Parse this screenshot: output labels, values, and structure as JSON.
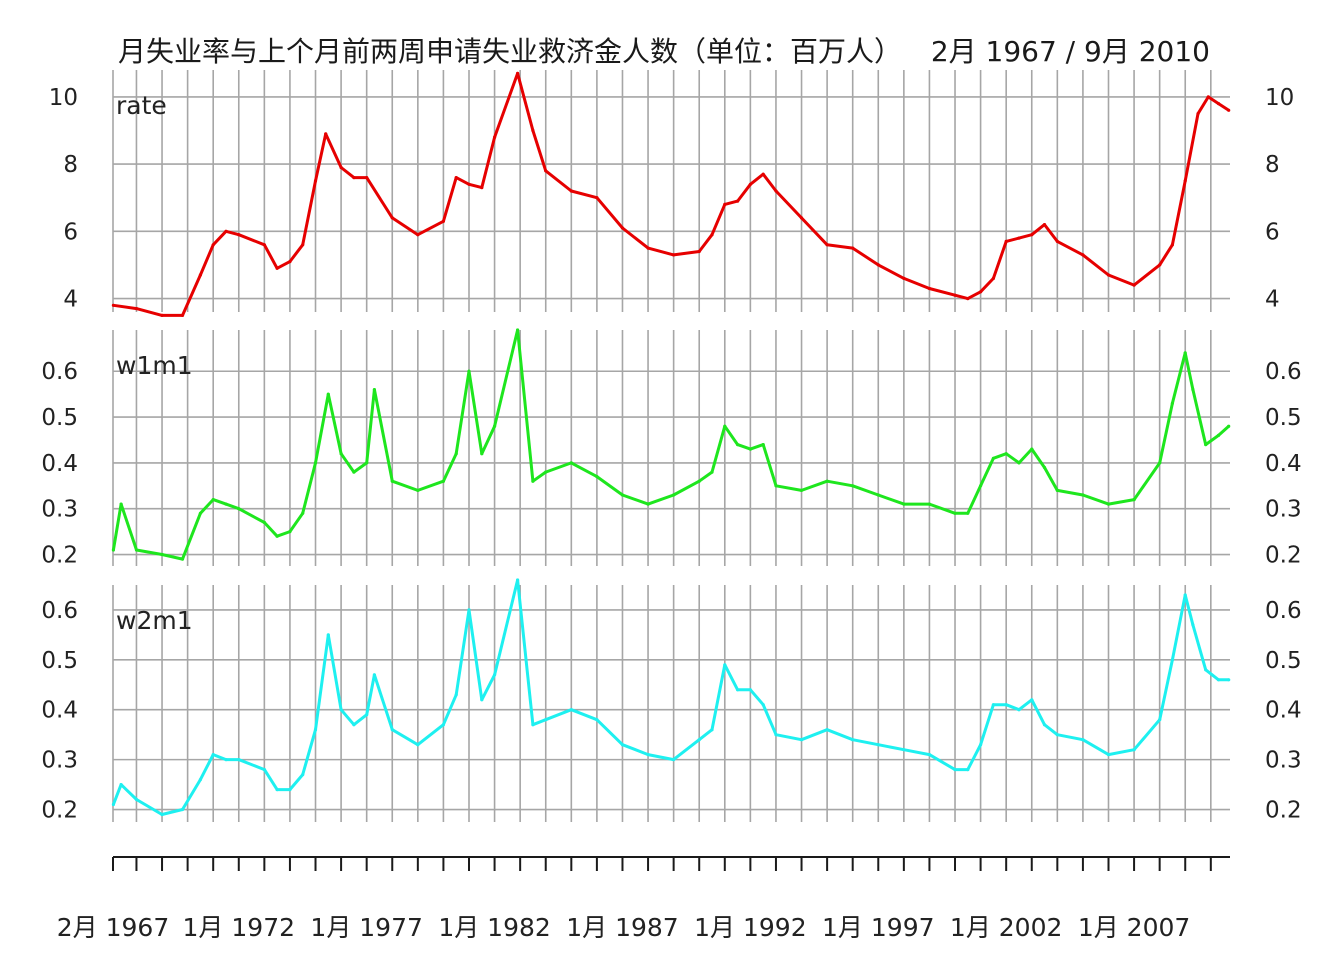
{
  "chart_data": {
    "type": "line",
    "title_left": "月失业率与上个月前两周申请失业救济金人数（单位：百万人）",
    "title_right": "2月 1967 / 9月 2010",
    "x_range": [
      "1967-02",
      "2010-09"
    ],
    "x_tick_labels": [
      "2月 1967",
      "1月 1972",
      "1月 1977",
      "1月 1982",
      "1月 1987",
      "1月 1992",
      "1月 1997",
      "1月 2002",
      "1月 2007"
    ],
    "x_tick_dates": [
      1967.083,
      1972.0,
      1977.0,
      1982.0,
      1987.0,
      1992.0,
      1997.0,
      2002.0,
      2007.0
    ],
    "x_minor_ticks": "yearly",
    "grid": true,
    "panels": [
      {
        "name": "rate",
        "color": "#e60000",
        "ylim": [
          3.6,
          10.8
        ],
        "yticks": [
          4,
          6,
          8,
          10
        ],
        "ytick_labels": [
          "4",
          "6",
          "8",
          "10"
        ],
        "x": [
          1967.1,
          1968.0,
          1969.0,
          1969.8,
          1970.5,
          1971.0,
          1971.5,
          1972.0,
          1973.0,
          1973.5,
          1974.0,
          1974.5,
          1975.0,
          1975.4,
          1976.0,
          1976.5,
          1977.0,
          1978.0,
          1979.0,
          1980.0,
          1980.5,
          1981.0,
          1981.5,
          1982.0,
          1982.9,
          1983.5,
          1984.0,
          1985.0,
          1986.0,
          1987.0,
          1988.0,
          1989.0,
          1990.0,
          1990.5,
          1991.0,
          1991.5,
          1992.0,
          1992.5,
          1993.0,
          1994.0,
          1995.0,
          1996.0,
          1997.0,
          1998.0,
          1999.0,
          2000.0,
          2000.5,
          2001.0,
          2001.5,
          2002.0,
          2002.5,
          2003.0,
          2003.5,
          2004.0,
          2005.0,
          2006.0,
          2007.0,
          2008.0,
          2008.5,
          2009.0,
          2009.5,
          2009.9,
          2010.3,
          2010.7
        ],
        "y": [
          3.8,
          3.7,
          3.5,
          3.5,
          4.7,
          5.6,
          6.0,
          5.9,
          5.6,
          4.9,
          5.1,
          5.6,
          7.5,
          8.9,
          7.9,
          7.6,
          7.6,
          6.4,
          5.9,
          6.3,
          7.6,
          7.4,
          7.3,
          8.8,
          10.7,
          9.0,
          7.8,
          7.2,
          7.0,
          6.1,
          5.5,
          5.3,
          5.4,
          5.9,
          6.8,
          6.9,
          7.4,
          7.7,
          7.2,
          6.4,
          5.6,
          5.5,
          5.0,
          4.6,
          4.3,
          4.1,
          4.0,
          4.2,
          4.6,
          5.7,
          5.8,
          5.9,
          6.2,
          5.7,
          5.3,
          4.7,
          4.4,
          5.0,
          5.6,
          7.5,
          9.5,
          10.0,
          9.8,
          9.6
        ]
      },
      {
        "name": "w1m1",
        "color": "#1ee61e",
        "ylim": [
          0.175,
          0.69
        ],
        "yticks": [
          0.2,
          0.3,
          0.4,
          0.5,
          0.6
        ],
        "ytick_labels": [
          "0.2",
          "0.3",
          "0.4",
          "0.5",
          "0.6"
        ],
        "x": [
          1967.1,
          1967.4,
          1968.0,
          1969.0,
          1969.8,
          1970.5,
          1971.0,
          1971.5,
          1972.0,
          1973.0,
          1973.5,
          1974.0,
          1974.5,
          1975.0,
          1975.5,
          1976.0,
          1976.5,
          1977.0,
          1977.3,
          1978.0,
          1979.0,
          1980.0,
          1980.5,
          1981.0,
          1981.5,
          1982.0,
          1982.9,
          1983.5,
          1984.0,
          1985.0,
          1986.0,
          1987.0,
          1988.0,
          1989.0,
          1990.0,
          1990.5,
          1991.0,
          1991.5,
          1992.0,
          1992.5,
          1993.0,
          1994.0,
          1995.0,
          1996.0,
          1997.0,
          1998.0,
          1999.0,
          2000.0,
          2000.5,
          2001.0,
          2001.5,
          2002.0,
          2002.5,
          2003.0,
          2003.5,
          2004.0,
          2005.0,
          2006.0,
          2007.0,
          2008.0,
          2008.5,
          2009.0,
          2009.3,
          2009.8,
          2010.3,
          2010.7
        ],
        "y": [
          0.21,
          0.31,
          0.21,
          0.2,
          0.19,
          0.29,
          0.32,
          0.31,
          0.3,
          0.27,
          0.24,
          0.25,
          0.29,
          0.4,
          0.55,
          0.42,
          0.38,
          0.4,
          0.56,
          0.36,
          0.34,
          0.36,
          0.42,
          0.6,
          0.42,
          0.48,
          0.69,
          0.36,
          0.38,
          0.4,
          0.37,
          0.33,
          0.31,
          0.33,
          0.36,
          0.38,
          0.48,
          0.44,
          0.43,
          0.44,
          0.35,
          0.34,
          0.36,
          0.35,
          0.33,
          0.31,
          0.31,
          0.29,
          0.29,
          0.35,
          0.41,
          0.42,
          0.4,
          0.43,
          0.39,
          0.34,
          0.33,
          0.31,
          0.32,
          0.4,
          0.53,
          0.64,
          0.56,
          0.44,
          0.46,
          0.48
        ]
      },
      {
        "name": "w2m1",
        "color": "#1ef0f0",
        "ylim": [
          0.175,
          0.65
        ],
        "yticks": [
          0.2,
          0.3,
          0.4,
          0.5,
          0.6
        ],
        "ytick_labels": [
          "0.2",
          "0.3",
          "0.4",
          "0.5",
          "0.6"
        ],
        "x": [
          1967.1,
          1967.4,
          1968.0,
          1969.0,
          1969.8,
          1970.5,
          1971.0,
          1971.5,
          1972.0,
          1973.0,
          1973.5,
          1974.0,
          1974.5,
          1975.0,
          1975.5,
          1976.0,
          1976.5,
          1977.0,
          1977.3,
          1978.0,
          1979.0,
          1980.0,
          1980.5,
          1981.0,
          1981.5,
          1982.0,
          1982.9,
          1983.5,
          1984.0,
          1985.0,
          1986.0,
          1987.0,
          1988.0,
          1989.0,
          1990.0,
          1990.5,
          1991.0,
          1991.5,
          1992.0,
          1992.5,
          1993.0,
          1994.0,
          1995.0,
          1996.0,
          1997.0,
          1998.0,
          1999.0,
          2000.0,
          2000.5,
          2001.0,
          2001.5,
          2002.0,
          2002.5,
          2003.0,
          2003.5,
          2004.0,
          2005.0,
          2006.0,
          2007.0,
          2008.0,
          2008.5,
          2009.0,
          2009.3,
          2009.8,
          2010.3,
          2010.7
        ],
        "y": [
          0.21,
          0.25,
          0.22,
          0.19,
          0.2,
          0.26,
          0.31,
          0.3,
          0.3,
          0.28,
          0.24,
          0.24,
          0.27,
          0.36,
          0.55,
          0.4,
          0.37,
          0.39,
          0.47,
          0.36,
          0.33,
          0.37,
          0.43,
          0.6,
          0.42,
          0.47,
          0.66,
          0.37,
          0.38,
          0.4,
          0.38,
          0.33,
          0.31,
          0.3,
          0.34,
          0.36,
          0.49,
          0.44,
          0.44,
          0.41,
          0.35,
          0.34,
          0.36,
          0.34,
          0.33,
          0.32,
          0.31,
          0.28,
          0.28,
          0.33,
          0.41,
          0.41,
          0.4,
          0.42,
          0.37,
          0.35,
          0.34,
          0.31,
          0.32,
          0.38,
          0.5,
          0.63,
          0.57,
          0.48,
          0.46,
          0.46
        ]
      }
    ]
  }
}
